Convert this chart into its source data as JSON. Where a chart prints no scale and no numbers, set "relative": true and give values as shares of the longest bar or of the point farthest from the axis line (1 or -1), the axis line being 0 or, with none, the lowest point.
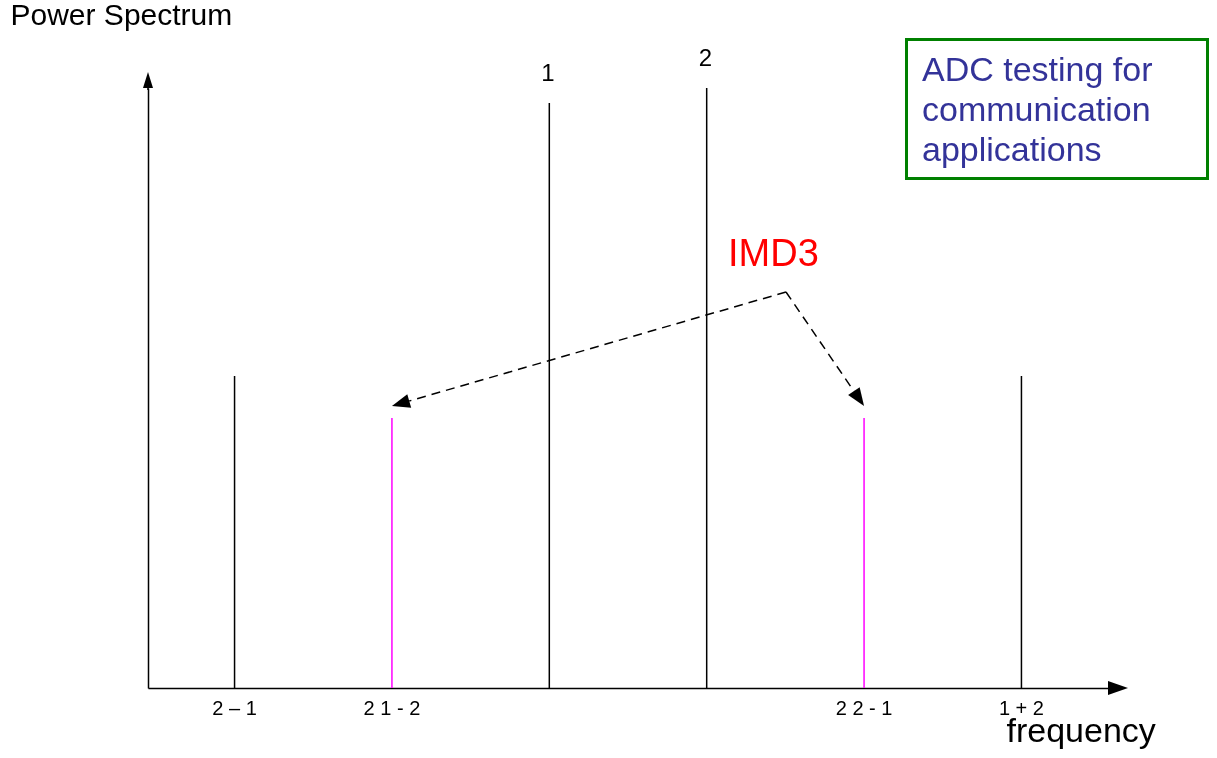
{
  "chart_data": {
    "type": "bar",
    "relative": true,
    "ylabel": "Power Spectrum",
    "xlabel": "frequency",
    "categories": [
      "2 – 1",
      "2 1 - 2",
      null,
      null,
      "2 2 - 1",
      "1 + 2"
    ],
    "values": [
      0.52,
      0.45,
      0.975,
      1,
      0.45,
      0.52
    ],
    "colors": [
      "#000000",
      "#ff00ff",
      "#000000",
      "#000000",
      "#ff00ff",
      "#000000"
    ],
    "annotations": [
      "IMD3",
      "ADC testing for communication applications",
      "1",
      "2"
    ]
  }
}
